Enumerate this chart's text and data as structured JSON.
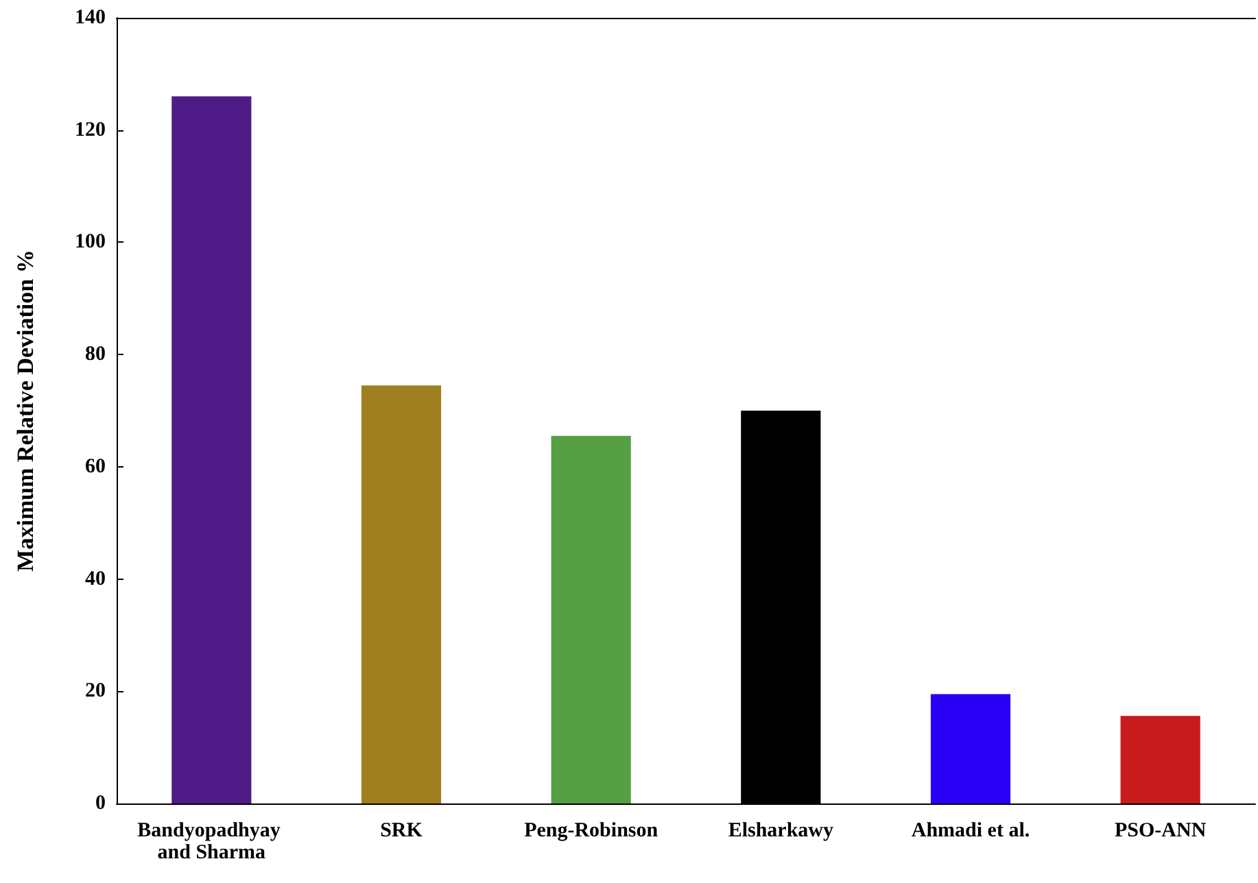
{
  "chart_data": {
    "type": "bar",
    "ylabel": "Maximum Relative Deviation %",
    "categories": [
      "Bandyopadhyay and Sharma",
      "SRK",
      "Peng-Robinson",
      "Elsharkawy",
      "Ahmadi et al.",
      "PSO-ANN"
    ],
    "values": [
      126,
      74.5,
      65.5,
      70,
      19.5,
      15.6
    ],
    "colors": [
      "#4f1c87",
      "#a07f20",
      "#55a045",
      "#000000",
      "#2a00f5",
      "#c81b1e"
    ],
    "ylim": [
      0,
      140
    ],
    "yticks": [
      0,
      20,
      40,
      60,
      80,
      100,
      120,
      140
    ],
    "grid": false
  }
}
